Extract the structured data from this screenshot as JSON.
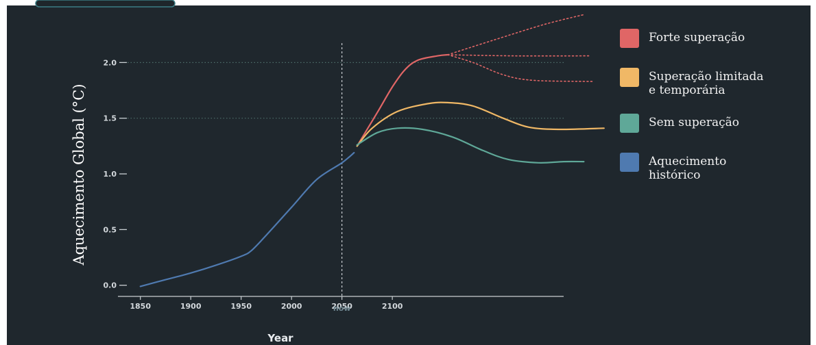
{
  "chart_data": {
    "type": "line",
    "title": "",
    "xlabel": "Year",
    "ylabel": "Aquecimento Global (°C)",
    "xlim": [
      1840,
      2270
    ],
    "ylim": [
      -0.1,
      2.5
    ],
    "x_ticks": [
      {
        "value": 1850,
        "label": "1850"
      },
      {
        "value": 1900,
        "label": "1900"
      },
      {
        "value": 1950,
        "label": "1950"
      },
      {
        "value": 2000,
        "label": "2000"
      },
      {
        "value": 2050,
        "label": "2050"
      },
      {
        "value": 2100,
        "label": "2100"
      }
    ],
    "y_ticks": [
      {
        "value": 0.0,
        "label": "0.0"
      },
      {
        "value": 0.5,
        "label": "0.5"
      },
      {
        "value": 1.0,
        "label": "1.0"
      },
      {
        "value": 1.5,
        "label": "1.5"
      },
      {
        "value": 2.0,
        "label": "2.0"
      }
    ],
    "now_marker": {
      "x": 2050,
      "label": "now"
    },
    "reference_lines": [
      2.0,
      1.5
    ],
    "legend": {
      "placement": "right",
      "entries": [
        {
          "label_lines": [
            "Forte superação"
          ],
          "color": "#e06666"
        },
        {
          "label_lines": [
            "Superação limitada",
            "e temporária"
          ],
          "color": "#f0b866"
        },
        {
          "label_lines": [
            "Sem superação"
          ],
          "color": "#5fa898"
        },
        {
          "label_lines": [
            "Aquecimento",
            "histórico"
          ],
          "color": "#4f7ab0"
        }
      ]
    },
    "series": [
      {
        "id": "historical",
        "color": "#4f7ab0",
        "points": [
          [
            1850,
            -0.01
          ],
          [
            1875,
            0.05
          ],
          [
            1900,
            0.11
          ],
          [
            1925,
            0.18
          ],
          [
            1950,
            0.26
          ],
          [
            1960,
            0.31
          ],
          [
            1975,
            0.45
          ],
          [
            2000,
            0.7
          ],
          [
            2025,
            0.95
          ],
          [
            2050,
            1.1
          ],
          [
            2062,
            1.19
          ]
        ]
      },
      {
        "id": "strong-overshoot",
        "color": "#e06666",
        "points": [
          [
            2065,
            1.25
          ],
          [
            2085,
            1.55
          ],
          [
            2100,
            1.78
          ],
          [
            2112,
            1.93
          ],
          [
            2125,
            2.02
          ],
          [
            2145,
            2.06
          ],
          [
            2155,
            2.07
          ]
        ]
      },
      {
        "id": "strong-overshoot-up",
        "color": "#e06666",
        "dashed": true,
        "points": [
          [
            2155,
            2.07
          ],
          [
            2200,
            2.2
          ],
          [
            2250,
            2.34
          ],
          [
            2290,
            2.43
          ]
        ]
      },
      {
        "id": "strong-overshoot-flat",
        "color": "#e06666",
        "dashed": true,
        "points": [
          [
            2155,
            2.07
          ],
          [
            2220,
            2.06
          ],
          [
            2295,
            2.06
          ]
        ]
      },
      {
        "id": "strong-overshoot-down",
        "color": "#e06666",
        "dashed": true,
        "points": [
          [
            2155,
            2.07
          ],
          [
            2180,
            2.0
          ],
          [
            2210,
            1.89
          ],
          [
            2240,
            1.84
          ],
          [
            2300,
            1.83
          ]
        ]
      },
      {
        "id": "limited-overshoot",
        "color": "#f0b866",
        "points": [
          [
            2065,
            1.25
          ],
          [
            2080,
            1.41
          ],
          [
            2105,
            1.56
          ],
          [
            2135,
            1.63
          ],
          [
            2155,
            1.64
          ],
          [
            2180,
            1.61
          ],
          [
            2210,
            1.5
          ],
          [
            2235,
            1.42
          ],
          [
            2265,
            1.4
          ],
          [
            2310,
            1.41
          ]
        ]
      },
      {
        "id": "no-overshoot",
        "color": "#5fa898",
        "points": [
          [
            2065,
            1.26
          ],
          [
            2085,
            1.37
          ],
          [
            2105,
            1.41
          ],
          [
            2130,
            1.4
          ],
          [
            2160,
            1.33
          ],
          [
            2190,
            1.21
          ],
          [
            2215,
            1.13
          ],
          [
            2245,
            1.1
          ],
          [
            2270,
            1.11
          ],
          [
            2290,
            1.11
          ]
        ]
      }
    ]
  }
}
